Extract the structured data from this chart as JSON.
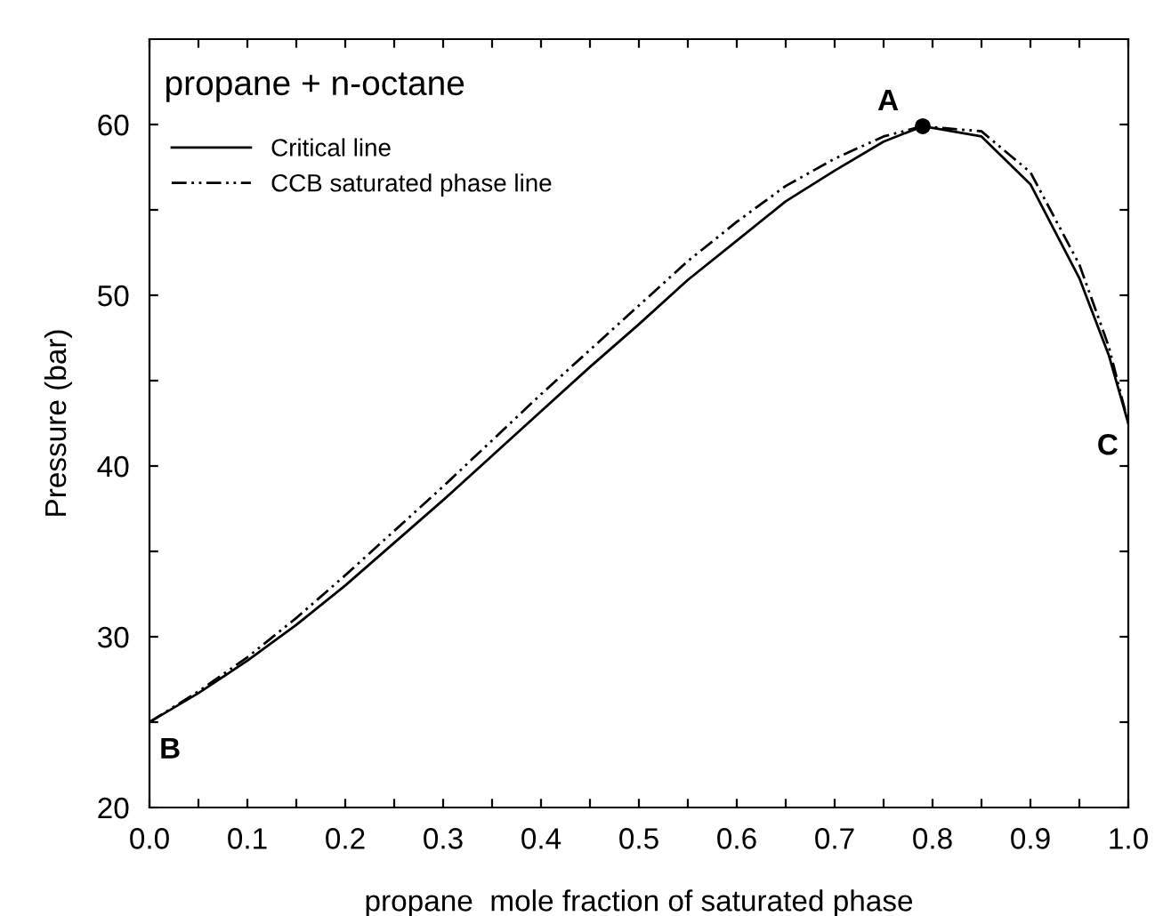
{
  "chart_data": {
    "type": "line",
    "title": "propane + n-octane",
    "xlabel": "propane  mole fraction of saturated phase",
    "ylabel": "Pressure (bar)",
    "xlim": [
      0,
      1
    ],
    "ylim": [
      20,
      65
    ],
    "xticks": [
      {
        "value": 0,
        "label": "0.0"
      },
      {
        "value": 0.05,
        "label": null
      },
      0.1,
      {
        "value": 0.15,
        "label": null
      },
      0.2,
      {
        "value": 0.25,
        "label": null
      },
      0.3,
      {
        "value": 0.35,
        "label": null
      },
      0.4,
      {
        "value": 0.45,
        "label": null
      },
      0.5,
      {
        "value": 0.55,
        "label": null
      },
      0.6,
      {
        "value": 0.65,
        "label": null
      },
      0.7,
      {
        "value": 0.75,
        "label": null
      },
      0.8,
      {
        "value": 0.85,
        "label": null
      },
      0.9,
      {
        "value": 0.95,
        "label": null
      },
      {
        "value": 1,
        "label": "1.0"
      }
    ],
    "yticks": [
      20,
      {
        "value": 25,
        "label": null
      },
      30,
      {
        "value": 35,
        "label": null
      },
      40,
      {
        "value": 45,
        "label": null
      },
      50,
      {
        "value": 55,
        "label": null
      },
      60
    ],
    "grid": false,
    "legend": "top left",
    "series": [
      {
        "name": "Critical line",
        "color": "#000000",
        "line_style": "solid",
        "x": [
          0,
          0.05,
          0.1,
          0.15,
          0.2,
          0.25,
          0.3,
          0.35,
          0.4,
          0.45,
          0.5,
          0.55,
          0.6,
          0.65,
          0.7,
          0.75,
          0.79,
          0.85,
          0.9,
          0.95,
          0.98,
          1.0
        ],
        "values": [
          25,
          26.7,
          28.6,
          30.7,
          33,
          35.5,
          38,
          40.6,
          43.2,
          45.8,
          48.3,
          50.9,
          53.2,
          55.5,
          57.3,
          59,
          59.9,
          59.3,
          56.5,
          51,
          46.5,
          42.5
        ]
      },
      {
        "name": "CCB saturated phase line",
        "color": "#000000",
        "line_style": "dashdotdot",
        "x": [
          0,
          0.05,
          0.1,
          0.15,
          0.2,
          0.25,
          0.3,
          0.35,
          0.4,
          0.45,
          0.5,
          0.55,
          0.6,
          0.65,
          0.7,
          0.75,
          0.79,
          0.85,
          0.9,
          0.95,
          0.98,
          1.0
        ],
        "values": [
          25,
          26.8,
          28.8,
          31.1,
          33.6,
          36.2,
          38.8,
          41.5,
          44.2,
          46.8,
          49.4,
          52,
          54.3,
          56.4,
          58,
          59.3,
          59.9,
          59.6,
          57.2,
          51.8,
          47,
          42.5
        ]
      },
      {
        "type": "scatter",
        "color": "#000000",
        "marker": "circle",
        "x": [
          0.79
        ],
        "values": [
          59.9
        ]
      }
    ],
    "annotations": [
      {
        "text": "A",
        "x": 0.79,
        "y": 59.9
      },
      {
        "text": "B",
        "x": 0,
        "y": 25
      },
      {
        "text": "C",
        "x": 1.0,
        "y": 42.5
      }
    ]
  }
}
